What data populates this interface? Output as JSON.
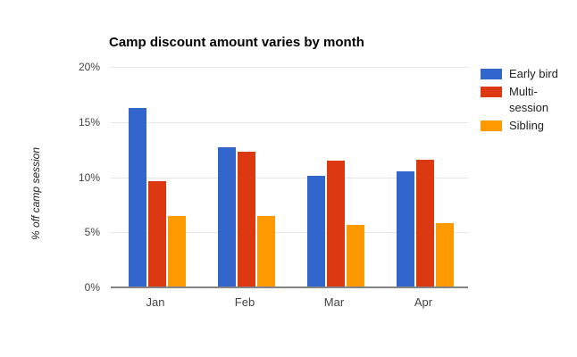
{
  "chart_data": {
    "type": "bar",
    "title": "Camp discount amount varies by month",
    "xlabel": "",
    "ylabel": "% off camp session",
    "categories": [
      "Jan",
      "Feb",
      "Mar",
      "Apr"
    ],
    "series": [
      {
        "name": "Early bird",
        "color": "#3366CC",
        "values": [
          16.3,
          12.7,
          10.1,
          10.5
        ]
      },
      {
        "name": "Multi-session",
        "color": "#DC3912",
        "values": [
          9.6,
          12.3,
          11.5,
          11.6
        ]
      },
      {
        "name": "Sibling",
        "color": "#FF9900",
        "values": [
          6.5,
          6.5,
          5.7,
          5.8
        ]
      }
    ],
    "ylim": [
      0,
      20
    ],
    "ytick_values": [
      0,
      5,
      10,
      15,
      20
    ],
    "yticks": [
      "0%",
      "5%",
      "10%",
      "15%",
      "20%"
    ],
    "grid": true,
    "legend_position": "right",
    "axis_line_color": "#848484",
    "gridline_color": "#e6e6e6"
  }
}
